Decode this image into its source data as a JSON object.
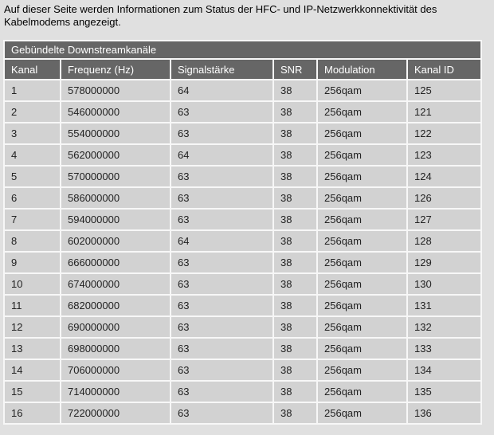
{
  "page": {
    "intro": "Auf dieser Seite werden Informationen zum Status der HFC- und IP-Netzwerkkonnektivität des Kabelmodems angezeigt."
  },
  "table": {
    "title": "Gebündelte Downstreamkanäle",
    "columns": [
      "Kanal",
      "Frequenz (Hz)",
      "Signalstärke",
      "SNR",
      "Modulation",
      "Kanal ID"
    ],
    "rows": [
      [
        "1",
        "578000000",
        "64",
        "38",
        "256qam",
        "125"
      ],
      [
        "2",
        "546000000",
        "63",
        "38",
        "256qam",
        "121"
      ],
      [
        "3",
        "554000000",
        "63",
        "38",
        "256qam",
        "122"
      ],
      [
        "4",
        "562000000",
        "64",
        "38",
        "256qam",
        "123"
      ],
      [
        "5",
        "570000000",
        "63",
        "38",
        "256qam",
        "124"
      ],
      [
        "6",
        "586000000",
        "63",
        "38",
        "256qam",
        "126"
      ],
      [
        "7",
        "594000000",
        "63",
        "38",
        "256qam",
        "127"
      ],
      [
        "8",
        "602000000",
        "64",
        "38",
        "256qam",
        "128"
      ],
      [
        "9",
        "666000000",
        "63",
        "38",
        "256qam",
        "129"
      ],
      [
        "10",
        "674000000",
        "63",
        "38",
        "256qam",
        "130"
      ],
      [
        "11",
        "682000000",
        "63",
        "38",
        "256qam",
        "131"
      ],
      [
        "12",
        "690000000",
        "63",
        "38",
        "256qam",
        "132"
      ],
      [
        "13",
        "698000000",
        "63",
        "38",
        "256qam",
        "133"
      ],
      [
        "14",
        "706000000",
        "63",
        "38",
        "256qam",
        "134"
      ],
      [
        "15",
        "714000000",
        "63",
        "38",
        "256qam",
        "135"
      ],
      [
        "16",
        "722000000",
        "63",
        "38",
        "256qam",
        "136"
      ]
    ]
  },
  "colors": {
    "page_bg": "#e0e0e0",
    "cell_bg": "#d2d2d2",
    "header_bg": "#666666",
    "grid_lines": "#f7f7f7",
    "header_text": "#ffffff",
    "cell_text": "#222222",
    "intro_text": "#000000"
  }
}
